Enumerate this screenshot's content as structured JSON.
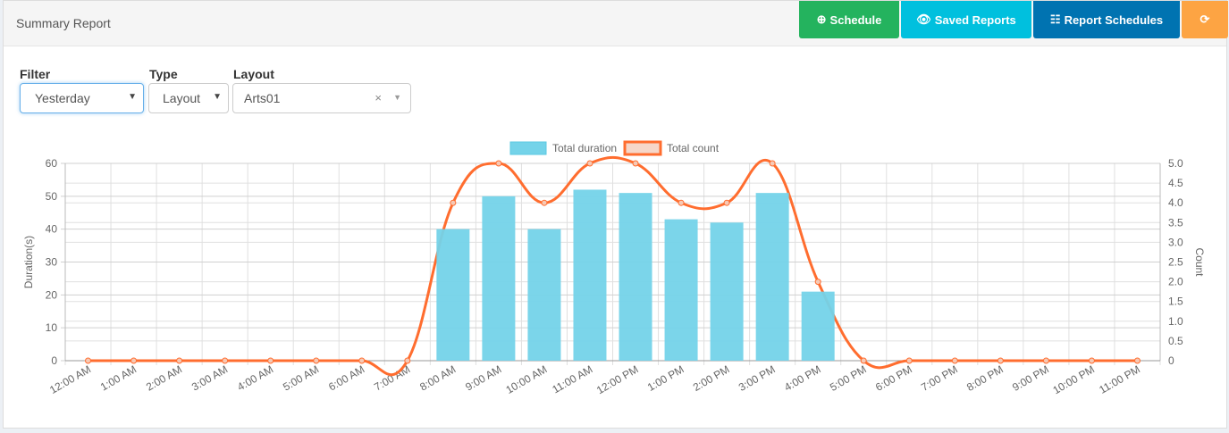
{
  "header": {
    "title": "Summary Report"
  },
  "buttons": [
    {
      "label": "Schedule",
      "icon": "plus-circle-icon",
      "color": "#24b35e"
    },
    {
      "label": "Saved Reports",
      "icon": "eye-icon",
      "color": "#00c0de"
    },
    {
      "label": "Report Schedules",
      "icon": "table-icon",
      "color": "#0073b1"
    },
    {
      "label": "",
      "icon": "refresh-icon",
      "color": "#fda443"
    }
  ],
  "filters": {
    "filter": {
      "label": "Filter",
      "value": "Yesterday"
    },
    "type": {
      "label": "Type",
      "value": "Layout"
    },
    "layout": {
      "label": "Layout",
      "value": "Arts01",
      "clear": "×"
    }
  },
  "chart_data": {
    "type": "bar",
    "categories": [
      "12:00 AM",
      "1:00 AM",
      "2:00 AM",
      "3:00 AM",
      "4:00 AM",
      "5:00 AM",
      "6:00 AM",
      "7:00 AM",
      "8:00 AM",
      "9:00 AM",
      "10:00 AM",
      "11:00 AM",
      "12:00 PM",
      "1:00 PM",
      "2:00 PM",
      "3:00 PM",
      "4:00 PM",
      "5:00 PM",
      "6:00 PM",
      "7:00 PM",
      "8:00 PM",
      "9:00 PM",
      "10:00 PM",
      "11:00 PM"
    ],
    "series": [
      {
        "name": "Total duration",
        "type": "bar",
        "axis": "left",
        "color": "#74d3e9",
        "values": [
          0,
          0,
          0,
          0,
          0,
          0,
          0,
          0,
          40,
          50,
          40,
          52,
          51,
          43,
          42,
          51,
          21,
          0,
          0,
          0,
          0,
          0,
          0,
          0
        ]
      },
      {
        "name": "Total count",
        "type": "line",
        "axis": "right",
        "color": "#ff6d2f",
        "values": [
          0,
          0,
          0,
          0,
          0,
          0,
          0,
          0,
          4,
          5,
          4,
          5,
          5,
          4,
          4,
          5,
          2,
          0,
          0,
          0,
          0,
          0,
          0,
          0
        ]
      }
    ],
    "ylabel": "Duration(s)",
    "y2label": "Count",
    "ylim": [
      0,
      60
    ],
    "y2lim": [
      0,
      5
    ],
    "yticks": [
      0,
      10,
      20,
      30,
      40,
      50,
      60
    ],
    "y2ticks": [
      "0",
      "0.5",
      "1.0",
      "1.5",
      "2.0",
      "2.5",
      "3.0",
      "3.5",
      "4.0",
      "4.5",
      "5.0"
    ],
    "grid": true,
    "legend": "top"
  }
}
